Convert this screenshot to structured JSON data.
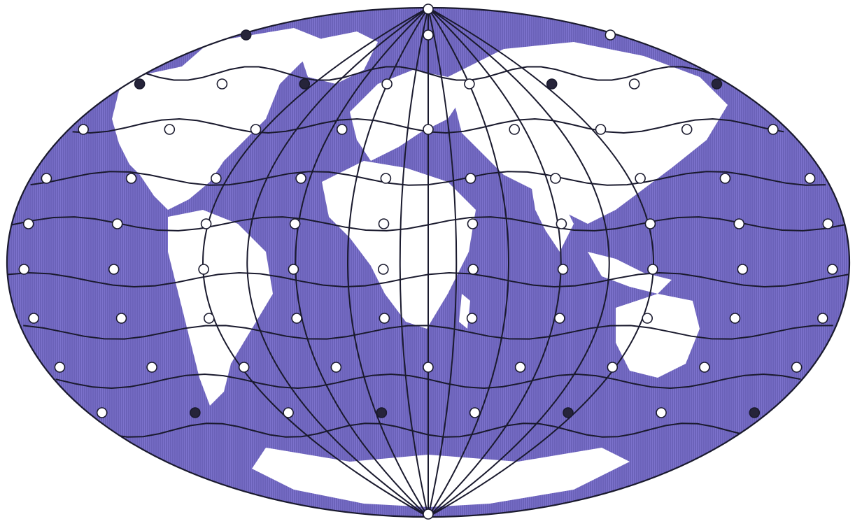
{
  "map": {
    "projection": "hammer-aitoff-ellipse",
    "ocean_color": "#7c72cc",
    "ocean_hatch_color": "#5a52a6",
    "land_color": "#ffffff",
    "grid_line_color": "#1a1a2e",
    "node_fill_open": "#ffffff",
    "node_fill_filled": "#26243a",
    "node_stroke": "#1a1a2e"
  }
}
